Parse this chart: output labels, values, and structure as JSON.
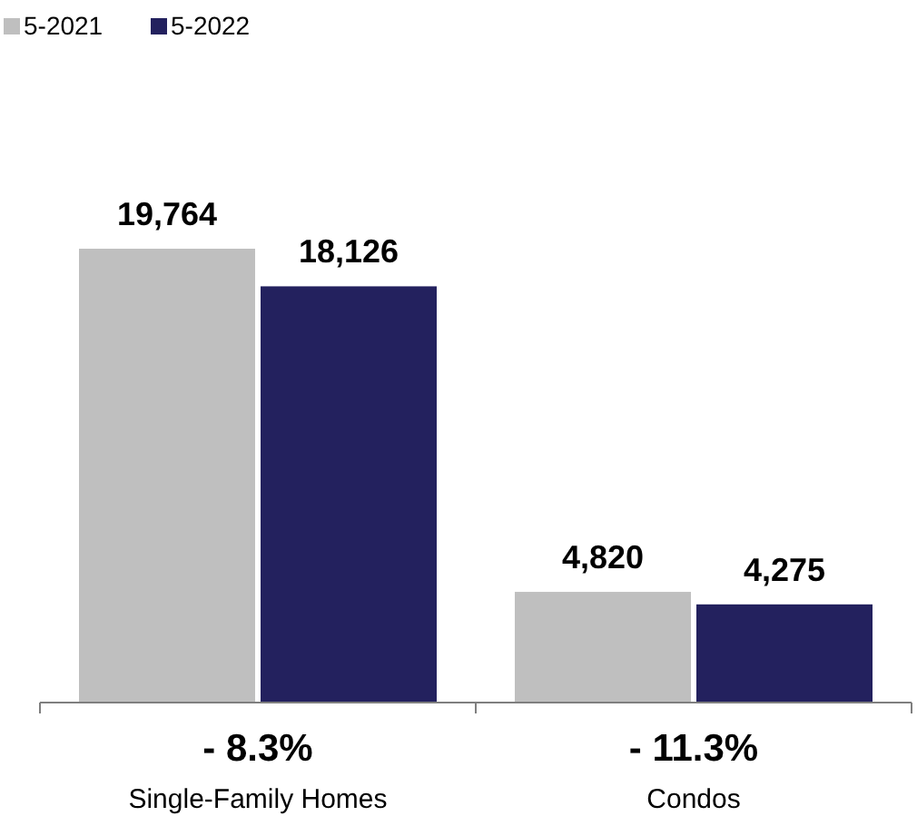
{
  "chart_data": {
    "type": "bar",
    "categories": [
      "Single-Family Homes",
      "Condos"
    ],
    "series": [
      {
        "name": "5-2021",
        "color": "#bfbfbf",
        "values": [
          19764,
          4820
        ],
        "value_labels": [
          "19,764",
          "4,820"
        ]
      },
      {
        "name": "5-2022",
        "color": "#23215e",
        "values": [
          18126,
          4275
        ],
        "value_labels": [
          "18,126",
          "4,275"
        ]
      }
    ],
    "legend": "top left",
    "annotations": [
      "- 8.3%",
      "- 11.3%"
    ]
  }
}
